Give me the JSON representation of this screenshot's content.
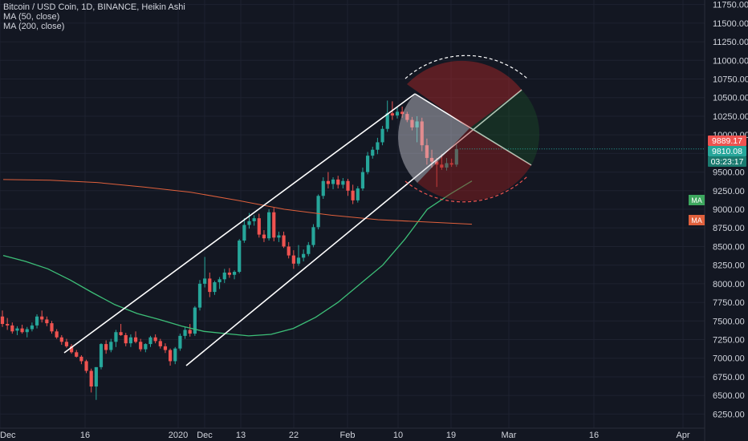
{
  "legend": {
    "title": "Bitcoin / USD Coin, 1D, BINANCE, Heikin Ashi",
    "ma1": "MA (50, close)",
    "ma2": "MA (200, close)"
  },
  "colors": {
    "background": "#131722",
    "up": "#26a69a",
    "down": "#ef5350",
    "ma50": "#3dbf78",
    "ma200": "#e0603c",
    "axis_text": "#d1d4dc",
    "channel": "#ffffff"
  },
  "price_axis": {
    "ticks": [
      "11750.00",
      "11500.00",
      "11250.00",
      "11000.00",
      "10750.00",
      "10500.00",
      "10250.00",
      "10000.00",
      "9750.00",
      "9500.00",
      "9250.00",
      "9000.00",
      "8750.00",
      "8500.00",
      "8250.00",
      "8000.00",
      "7750.00",
      "7500.00",
      "7250.00",
      "7000.00",
      "6750.00",
      "6500.00",
      "6250.00"
    ],
    "last_close_label": "9889.17",
    "current_price_label": "9810.08",
    "countdown_label": "03:23:17",
    "ma50_tag": "MA",
    "ma200_tag": "MA"
  },
  "time_axis": {
    "ticks": [
      "Dec",
      "16",
      "2020",
      "Dec",
      "13",
      "22",
      "Feb",
      "10",
      "19",
      "Mar",
      "16",
      "Apr"
    ]
  },
  "chart_data": {
    "type": "candlestick",
    "title": "Bitcoin / USD Coin, 1D, BINANCE, Heikin Ashi",
    "ylim": [
      6100,
      11850
    ],
    "candles": [
      {
        "o": 7560,
        "h": 7640,
        "l": 7420,
        "c": 7460
      },
      {
        "o": 7460,
        "h": 7540,
        "l": 7380,
        "c": 7440
      },
      {
        "o": 7440,
        "h": 7480,
        "l": 7330,
        "c": 7360
      },
      {
        "o": 7370,
        "h": 7430,
        "l": 7310,
        "c": 7400
      },
      {
        "o": 7400,
        "h": 7450,
        "l": 7330,
        "c": 7350
      },
      {
        "o": 7350,
        "h": 7420,
        "l": 7280,
        "c": 7390
      },
      {
        "o": 7390,
        "h": 7480,
        "l": 7360,
        "c": 7440
      },
      {
        "o": 7440,
        "h": 7590,
        "l": 7400,
        "c": 7560
      },
      {
        "o": 7560,
        "h": 7640,
        "l": 7480,
        "c": 7520
      },
      {
        "o": 7520,
        "h": 7560,
        "l": 7430,
        "c": 7470
      },
      {
        "o": 7470,
        "h": 7500,
        "l": 7330,
        "c": 7360
      },
      {
        "o": 7360,
        "h": 7390,
        "l": 7260,
        "c": 7280
      },
      {
        "o": 7280,
        "h": 7310,
        "l": 7180,
        "c": 7220
      },
      {
        "o": 7220,
        "h": 7260,
        "l": 7140,
        "c": 7160
      },
      {
        "o": 7160,
        "h": 7190,
        "l": 7060,
        "c": 7080
      },
      {
        "o": 7080,
        "h": 7110,
        "l": 7010,
        "c": 7020
      },
      {
        "o": 7020,
        "h": 7040,
        "l": 6920,
        "c": 6960
      },
      {
        "o": 6960,
        "h": 6980,
        "l": 6800,
        "c": 6830
      },
      {
        "o": 6830,
        "h": 6860,
        "l": 6540,
        "c": 6620
      },
      {
        "o": 6620,
        "h": 6880,
        "l": 6440,
        "c": 6880
      },
      {
        "o": 6880,
        "h": 7200,
        "l": 6850,
        "c": 7190
      },
      {
        "o": 7190,
        "h": 7240,
        "l": 7060,
        "c": 7110
      },
      {
        "o": 7110,
        "h": 7260,
        "l": 7080,
        "c": 7220
      },
      {
        "o": 7220,
        "h": 7380,
        "l": 7150,
        "c": 7350
      },
      {
        "o": 7350,
        "h": 7460,
        "l": 7300,
        "c": 7310
      },
      {
        "o": 7310,
        "h": 7340,
        "l": 7160,
        "c": 7200
      },
      {
        "o": 7200,
        "h": 7320,
        "l": 7150,
        "c": 7280
      },
      {
        "o": 7280,
        "h": 7360,
        "l": 7200,
        "c": 7220
      },
      {
        "o": 7220,
        "h": 7260,
        "l": 7090,
        "c": 7120
      },
      {
        "o": 7120,
        "h": 7200,
        "l": 7080,
        "c": 7190
      },
      {
        "o": 7190,
        "h": 7300,
        "l": 7150,
        "c": 7280
      },
      {
        "o": 7280,
        "h": 7320,
        "l": 7200,
        "c": 7230
      },
      {
        "o": 7230,
        "h": 7260,
        "l": 7130,
        "c": 7160
      },
      {
        "o": 7160,
        "h": 7200,
        "l": 7070,
        "c": 7110
      },
      {
        "o": 7110,
        "h": 7130,
        "l": 6900,
        "c": 6960
      },
      {
        "o": 6960,
        "h": 7150,
        "l": 6920,
        "c": 7130
      },
      {
        "o": 7130,
        "h": 7330,
        "l": 7100,
        "c": 7300
      },
      {
        "o": 7300,
        "h": 7420,
        "l": 7260,
        "c": 7380
      },
      {
        "o": 7380,
        "h": 7460,
        "l": 7290,
        "c": 7330
      },
      {
        "o": 7330,
        "h": 7700,
        "l": 7300,
        "c": 7680
      },
      {
        "o": 7680,
        "h": 8050,
        "l": 7640,
        "c": 8000
      },
      {
        "o": 8000,
        "h": 8360,
        "l": 7950,
        "c": 8070
      },
      {
        "o": 8070,
        "h": 8150,
        "l": 7820,
        "c": 7890
      },
      {
        "o": 7890,
        "h": 8040,
        "l": 7850,
        "c": 8020
      },
      {
        "o": 8020,
        "h": 8090,
        "l": 7930,
        "c": 8060
      },
      {
        "o": 8060,
        "h": 8200,
        "l": 8010,
        "c": 8150
      },
      {
        "o": 8150,
        "h": 8210,
        "l": 8080,
        "c": 8120
      },
      {
        "o": 8120,
        "h": 8180,
        "l": 8060,
        "c": 8160
      },
      {
        "o": 8160,
        "h": 8600,
        "l": 8140,
        "c": 8580
      },
      {
        "o": 8580,
        "h": 8880,
        "l": 8550,
        "c": 8790
      },
      {
        "o": 8790,
        "h": 8950,
        "l": 8740,
        "c": 8840
      },
      {
        "o": 8840,
        "h": 8920,
        "l": 8780,
        "c": 8880
      },
      {
        "o": 8880,
        "h": 8940,
        "l": 8620,
        "c": 8660
      },
      {
        "o": 8660,
        "h": 8720,
        "l": 8560,
        "c": 8610
      },
      {
        "o": 8610,
        "h": 9000,
        "l": 8580,
        "c": 8960
      },
      {
        "o": 8960,
        "h": 9020,
        "l": 8570,
        "c": 8620
      },
      {
        "o": 8620,
        "h": 8700,
        "l": 8560,
        "c": 8650
      },
      {
        "o": 8650,
        "h": 8700,
        "l": 8480,
        "c": 8500
      },
      {
        "o": 8500,
        "h": 8560,
        "l": 8340,
        "c": 8380
      },
      {
        "o": 8380,
        "h": 8450,
        "l": 8200,
        "c": 8270
      },
      {
        "o": 8270,
        "h": 8520,
        "l": 8240,
        "c": 8350
      },
      {
        "o": 8350,
        "h": 8460,
        "l": 8300,
        "c": 8400
      },
      {
        "o": 8400,
        "h": 8560,
        "l": 8370,
        "c": 8520
      },
      {
        "o": 8520,
        "h": 8800,
        "l": 8490,
        "c": 8760
      },
      {
        "o": 8760,
        "h": 9200,
        "l": 8730,
        "c": 9180
      },
      {
        "o": 9180,
        "h": 9430,
        "l": 9140,
        "c": 9380
      },
      {
        "o": 9380,
        "h": 9500,
        "l": 9280,
        "c": 9340
      },
      {
        "o": 9340,
        "h": 9430,
        "l": 9270,
        "c": 9400
      },
      {
        "o": 9400,
        "h": 9450,
        "l": 9280,
        "c": 9330
      },
      {
        "o": 9330,
        "h": 9420,
        "l": 9280,
        "c": 9380
      },
      {
        "o": 9380,
        "h": 9410,
        "l": 9180,
        "c": 9250
      },
      {
        "o": 9250,
        "h": 9330,
        "l": 9070,
        "c": 9120
      },
      {
        "o": 9120,
        "h": 9310,
        "l": 9090,
        "c": 9280
      },
      {
        "o": 9280,
        "h": 9560,
        "l": 9250,
        "c": 9500
      },
      {
        "o": 9500,
        "h": 9770,
        "l": 9470,
        "c": 9720
      },
      {
        "o": 9720,
        "h": 9840,
        "l": 9680,
        "c": 9800
      },
      {
        "o": 9800,
        "h": 9960,
        "l": 9740,
        "c": 9900
      },
      {
        "o": 9900,
        "h": 10120,
        "l": 9860,
        "c": 10080
      },
      {
        "o": 10080,
        "h": 10460,
        "l": 10040,
        "c": 10290
      },
      {
        "o": 10290,
        "h": 10450,
        "l": 10200,
        "c": 10260
      },
      {
        "o": 10260,
        "h": 10370,
        "l": 10220,
        "c": 10310
      },
      {
        "o": 10310,
        "h": 10380,
        "l": 10230,
        "c": 10280
      },
      {
        "o": 10280,
        "h": 10310,
        "l": 10170,
        "c": 10200
      },
      {
        "o": 10200,
        "h": 10240,
        "l": 10060,
        "c": 10100
      },
      {
        "o": 10100,
        "h": 10250,
        "l": 9900,
        "c": 10180
      },
      {
        "o": 10180,
        "h": 10230,
        "l": 9780,
        "c": 9860
      },
      {
        "o": 9860,
        "h": 9950,
        "l": 9600,
        "c": 9690
      },
      {
        "o": 9690,
        "h": 9800,
        "l": 9560,
        "c": 9640
      },
      {
        "o": 9640,
        "h": 9690,
        "l": 9300,
        "c": 9600
      },
      {
        "o": 9600,
        "h": 9740,
        "l": 9530,
        "c": 9560
      },
      {
        "o": 9560,
        "h": 9690,
        "l": 9520,
        "c": 9620
      },
      {
        "o": 9620,
        "h": 9680,
        "l": 9570,
        "c": 9600
      },
      {
        "o": 9600,
        "h": 9870,
        "l": 9570,
        "c": 9810
      }
    ],
    "ma50": [
      8380,
      8300,
      8200,
      8050,
      7880,
      7720,
      7600,
      7520,
      7430,
      7360,
      7330,
      7300,
      7320,
      7400,
      7550,
      7750,
      8000,
      8250,
      8600,
      9000,
      9200,
      9380
    ],
    "ma200": [
      9400,
      9390,
      9360,
      9300,
      9230,
      9120,
      9000,
      8920,
      8860,
      8830,
      8800
    ],
    "channel": {
      "upper": [
        [
          7000,
          10500
        ],
        [
          11,
          12
        ]
      ],
      "lower": [
        [
          6500,
          10
        ]
      ]
    },
    "xlabel": "",
    "ylabel": ""
  }
}
